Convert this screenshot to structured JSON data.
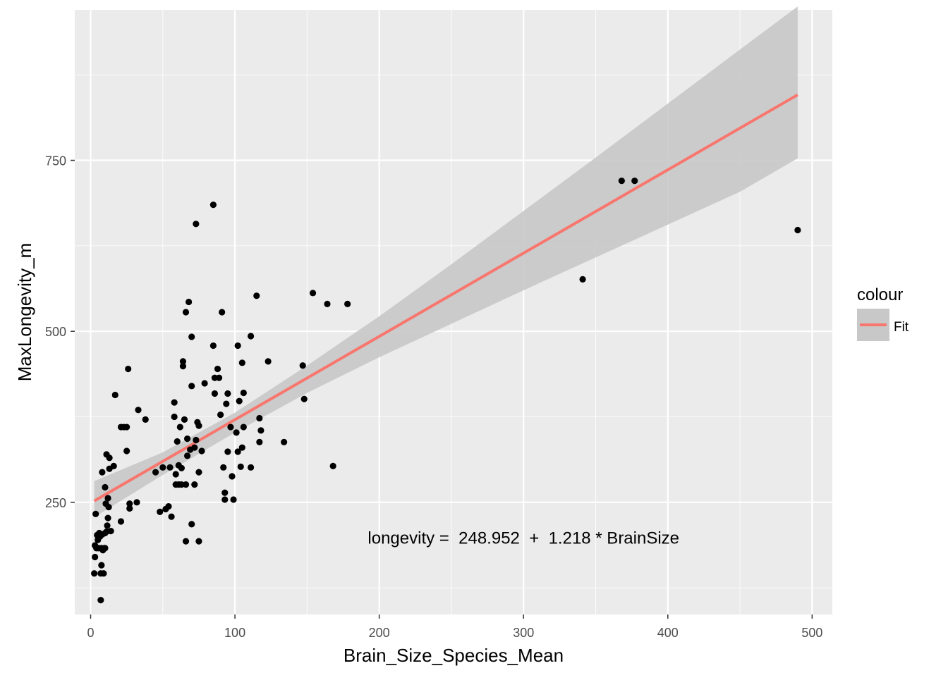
{
  "chart_data": {
    "type": "scatter",
    "xlabel": "Brain_Size_Species_Mean",
    "ylabel": "MaxLongevity_m",
    "xlim": [
      -11,
      514
    ],
    "ylim": [
      86,
      970
    ],
    "x_ticks": [
      0,
      100,
      200,
      300,
      400,
      500
    ],
    "y_ticks": [
      250,
      500,
      750
    ],
    "x_tick_labels": [
      "0",
      "100",
      "200",
      "300",
      "400",
      "500"
    ],
    "y_tick_labels": [
      "250",
      "500",
      "750"
    ],
    "grid": true,
    "colors": {
      "panel_background": "#ebebeb",
      "grid": "#ffffff",
      "points": "#000000",
      "fit_line": "#f8766d",
      "confidence_band": "#c8c8c8"
    },
    "legend": {
      "title": "colour",
      "position": "right",
      "entries": [
        {
          "label": "Fit",
          "color": "#f8766d"
        }
      ]
    },
    "annotation": {
      "text": "longevity =  248.952  +  1.218 * BrainSize",
      "x": 300,
      "y": 198
    },
    "series": [
      {
        "name": "Fit",
        "kind": "line",
        "intercept": 248.952,
        "slope": 1.218,
        "x": [
          2.5,
          490
        ],
        "band": [
          {
            "x": 2.5,
            "lower": 228,
            "upper": 281
          },
          {
            "x": 50,
            "lower": 290,
            "upper": 323
          },
          {
            "x": 100,
            "lower": 352,
            "upper": 381
          },
          {
            "x": 150,
            "lower": 410,
            "upper": 450
          },
          {
            "x": 200,
            "lower": 462,
            "upper": 522
          },
          {
            "x": 250,
            "lower": 511,
            "upper": 598
          },
          {
            "x": 300,
            "lower": 560,
            "upper": 676
          },
          {
            "x": 350,
            "lower": 608,
            "upper": 754
          },
          {
            "x": 400,
            "lower": 656,
            "upper": 833
          },
          {
            "x": 450,
            "lower": 704,
            "upper": 912
          },
          {
            "x": 490,
            "lower": 753,
            "upper": 975
          }
        ]
      },
      {
        "name": "",
        "kind": "points",
        "points": [
          [
            2.5,
            146
          ],
          [
            3,
            170
          ],
          [
            3,
            187
          ],
          [
            3.5,
            233
          ],
          [
            4,
            183
          ],
          [
            4.5,
            202
          ],
          [
            5,
            195
          ],
          [
            5.5,
            183
          ],
          [
            6,
            205
          ],
          [
            6.5,
            200
          ],
          [
            7,
            146
          ],
          [
            7,
            107
          ],
          [
            7.5,
            158
          ],
          [
            7.5,
            183
          ],
          [
            8,
            203
          ],
          [
            8,
            294
          ],
          [
            8.5,
            180
          ],
          [
            9,
            146
          ],
          [
            9.5,
            183
          ],
          [
            10,
            205
          ],
          [
            10,
            272
          ],
          [
            10,
            183
          ],
          [
            10.5,
            248
          ],
          [
            11,
            320
          ],
          [
            11,
            207
          ],
          [
            11.5,
            216
          ],
          [
            12,
            256
          ],
          [
            12,
            227
          ],
          [
            12.5,
            243
          ],
          [
            13,
            315
          ],
          [
            13,
            299
          ],
          [
            14,
            208
          ],
          [
            16,
            303
          ],
          [
            17,
            407
          ],
          [
            21,
            222
          ],
          [
            21,
            360
          ],
          [
            23,
            360
          ],
          [
            25,
            360
          ],
          [
            25,
            325
          ],
          [
            26,
            445
          ],
          [
            27,
            248
          ],
          [
            27,
            241
          ],
          [
            32,
            250
          ],
          [
            33,
            385
          ],
          [
            38,
            371
          ],
          [
            45,
            294
          ],
          [
            48,
            236
          ],
          [
            50,
            301
          ],
          [
            52,
            240
          ],
          [
            54,
            244
          ],
          [
            55,
            301
          ],
          [
            56,
            229
          ],
          [
            58,
            396
          ],
          [
            58,
            375
          ],
          [
            59,
            276
          ],
          [
            59,
            291
          ],
          [
            60,
            339
          ],
          [
            61,
            304
          ],
          [
            61,
            276
          ],
          [
            62,
            360
          ],
          [
            63,
            300
          ],
          [
            63,
            276
          ],
          [
            64,
            449
          ],
          [
            64,
            456
          ],
          [
            65,
            371
          ],
          [
            66,
            528
          ],
          [
            66,
            276
          ],
          [
            66,
            193
          ],
          [
            67,
            318
          ],
          [
            67,
            343
          ],
          [
            68,
            543
          ],
          [
            69,
            327
          ],
          [
            70,
            218
          ],
          [
            70,
            492
          ],
          [
            70,
            420
          ],
          [
            72,
            276
          ],
          [
            72,
            330
          ],
          [
            73,
            341
          ],
          [
            73,
            657
          ],
          [
            74,
            367
          ],
          [
            75,
            193
          ],
          [
            75,
            294
          ],
          [
            75,
            362
          ],
          [
            77,
            325
          ],
          [
            79,
            424
          ],
          [
            85,
            685
          ],
          [
            85,
            479
          ],
          [
            86,
            432
          ],
          [
            86,
            409
          ],
          [
            88,
            445
          ],
          [
            89,
            432
          ],
          [
            90,
            378
          ],
          [
            91,
            528
          ],
          [
            92,
            301
          ],
          [
            93,
            254
          ],
          [
            93,
            264
          ],
          [
            94,
            394
          ],
          [
            95,
            409
          ],
          [
            95,
            324
          ],
          [
            97,
            360
          ],
          [
            98,
            288
          ],
          [
            99,
            254
          ],
          [
            101,
            352
          ],
          [
            102,
            479
          ],
          [
            102,
            324
          ],
          [
            103,
            398
          ],
          [
            104,
            302
          ],
          [
            105,
            454
          ],
          [
            105,
            330
          ],
          [
            106,
            360
          ],
          [
            106,
            410
          ],
          [
            111,
            493
          ],
          [
            111,
            301
          ],
          [
            115,
            552
          ],
          [
            117,
            373
          ],
          [
            117,
            338
          ],
          [
            118,
            355
          ],
          [
            123,
            456
          ],
          [
            134,
            338
          ],
          [
            147,
            450
          ],
          [
            148,
            401
          ],
          [
            154,
            556
          ],
          [
            164,
            540
          ],
          [
            168,
            303
          ],
          [
            178,
            540
          ],
          [
            341,
            576
          ],
          [
            368,
            720
          ],
          [
            377,
            720
          ],
          [
            490,
            648
          ]
        ]
      }
    ]
  }
}
